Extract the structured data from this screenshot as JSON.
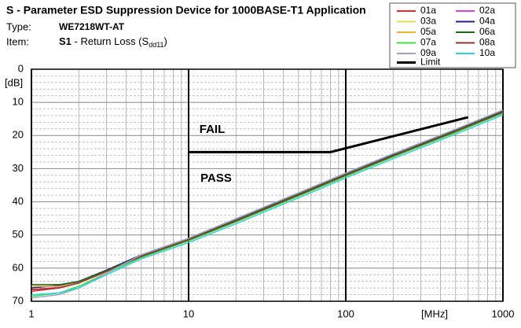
{
  "chart_data": {
    "type": "line",
    "title": "S - Parameter ESD Suppression Device for 1000BASE-T1 Application",
    "type_label": "Type:",
    "type_value": "WE7218WT-AT",
    "item_label": "Item:",
    "item_code": "S1",
    "item_text": "- Return Loss (S",
    "item_sub": "dd11",
    "item_close": ")",
    "y_label": "[dB]",
    "x_label": "[MHz]",
    "annotations": [
      {
        "text": "FAIL",
        "color": "#e00000"
      },
      {
        "text": "PASS",
        "color": "#1aa050"
      }
    ],
    "xlog": true,
    "y_inverted": true,
    "xlim": [
      1,
      1000
    ],
    "ylim": [
      0,
      70
    ],
    "xticks": [
      1,
      10,
      100,
      1000
    ],
    "yticks": [
      0,
      10,
      20,
      30,
      40,
      50,
      60,
      70
    ],
    "x_minor_grid": [
      2,
      3,
      4,
      5,
      6,
      7,
      8,
      9,
      20,
      30,
      40,
      50,
      60,
      70,
      80,
      90,
      200,
      300,
      400,
      500,
      600,
      700,
      800,
      900
    ],
    "y_minor_grid": [
      2,
      4,
      6,
      8,
      12,
      14,
      16,
      18,
      22,
      24,
      26,
      28,
      32,
      34,
      36,
      38,
      42,
      44,
      46,
      48,
      52,
      54,
      56,
      58,
      62,
      64,
      66,
      68
    ],
    "grid": true,
    "legend": "top-right",
    "x": [
      1,
      1.5,
      2,
      3,
      5,
      10,
      20,
      50,
      100,
      200,
      500,
      1000
    ],
    "series": [
      {
        "name": "01a",
        "color": "#ff2020",
        "values": [
          67,
          66,
          64.5,
          61,
          56.5,
          51.5,
          45.8,
          38,
          32,
          26.2,
          18.8,
          13
        ]
      },
      {
        "name": "02a",
        "color": "#e040e0",
        "values": [
          66.5,
          65.8,
          64.2,
          61,
          56.4,
          51.4,
          45.7,
          37.9,
          31.9,
          26.1,
          18.7,
          12.9
        ]
      },
      {
        "name": "03a",
        "color": "#e8d850",
        "values": [
          65,
          65,
          64,
          60.8,
          56.2,
          51.2,
          45.5,
          37.7,
          31.7,
          25.9,
          18.5,
          12.7
        ]
      },
      {
        "name": "04a",
        "color": "#20208a",
        "values": [
          66,
          65.2,
          64,
          60.6,
          56,
          51,
          45.2,
          37.4,
          31.4,
          25.6,
          18.2,
          12.4
        ]
      },
      {
        "name": "05a",
        "color": "#f0b030",
        "values": [
          65.5,
          65.5,
          64.5,
          61.2,
          56.6,
          51.6,
          45.9,
          38.1,
          32.1,
          26.3,
          18.9,
          13.1
        ]
      },
      {
        "name": "06a",
        "color": "#1a6b1a",
        "values": [
          65,
          65,
          64,
          60.8,
          56.3,
          51.3,
          45.6,
          37.8,
          31.8,
          26,
          18.6,
          12.8
        ]
      },
      {
        "name": "07a",
        "color": "#40e040",
        "values": [
          68.5,
          67.5,
          65.5,
          61.5,
          56.8,
          51.8,
          46.1,
          38.3,
          32.3,
          26.5,
          19.1,
          13.3
        ]
      },
      {
        "name": "08a",
        "color": "#8b3a2a",
        "values": [
          66.5,
          66,
          64.5,
          61,
          56.5,
          51.5,
          45.8,
          38,
          32,
          26.2,
          18.8,
          13
        ]
      },
      {
        "name": "09a",
        "color": "#a0a0c8",
        "values": [
          69,
          68,
          66,
          61.5,
          56,
          51,
          45.1,
          37.3,
          31.3,
          25.5,
          18.1,
          12.3
        ]
      },
      {
        "name": "10a",
        "color": "#30d0e0",
        "values": [
          68,
          67.5,
          66,
          62,
          57.2,
          52.3,
          46.6,
          38.8,
          32.8,
          27,
          19.6,
          13.8
        ]
      }
    ],
    "limit": {
      "name": "Limit",
      "color": "#000000",
      "x": [
        10,
        80,
        600
      ],
      "values": [
        25,
        25,
        14.5
      ]
    }
  }
}
